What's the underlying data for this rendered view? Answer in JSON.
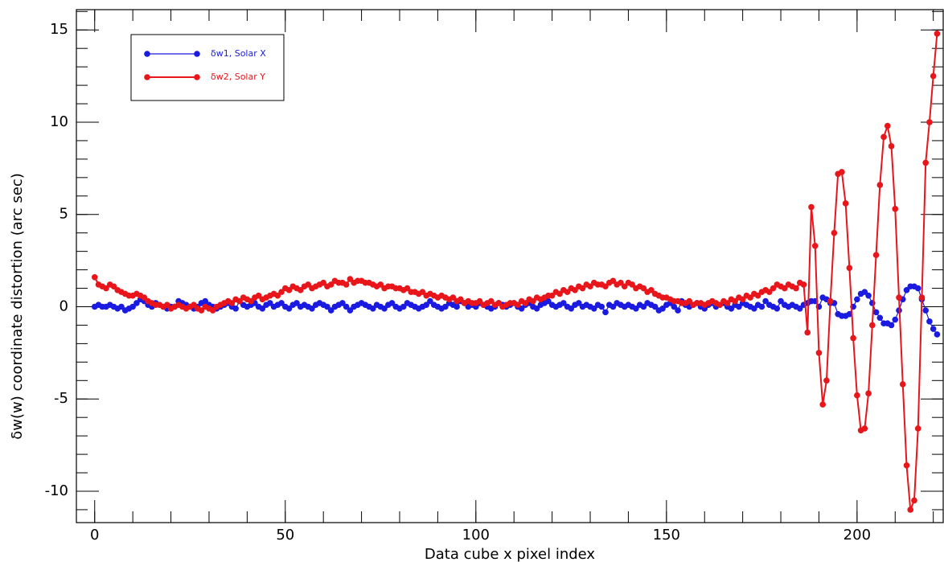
{
  "chart_data": {
    "type": "line",
    "x_label": "Data cube x pixel index",
    "y_label": "δw(w) coordinate distortion (arc sec)",
    "x": [
      0,
      1,
      2,
      3,
      4,
      5,
      6,
      7,
      8,
      9,
      10,
      11,
      12,
      13,
      14,
      15,
      16,
      17,
      18,
      19,
      20,
      21,
      22,
      23,
      24,
      25,
      26,
      27,
      28,
      29,
      30,
      31,
      32,
      33,
      34,
      35,
      36,
      37,
      38,
      39,
      40,
      41,
      42,
      43,
      44,
      45,
      46,
      47,
      48,
      49,
      50,
      51,
      52,
      53,
      54,
      55,
      56,
      57,
      58,
      59,
      60,
      61,
      62,
      63,
      64,
      65,
      66,
      67,
      68,
      69,
      70,
      71,
      72,
      73,
      74,
      75,
      76,
      77,
      78,
      79,
      80,
      81,
      82,
      83,
      84,
      85,
      86,
      87,
      88,
      89,
      90,
      91,
      92,
      93,
      94,
      95,
      96,
      97,
      98,
      99,
      100,
      101,
      102,
      103,
      104,
      105,
      106,
      107,
      108,
      109,
      110,
      111,
      112,
      113,
      114,
      115,
      116,
      117,
      118,
      119,
      120,
      121,
      122,
      123,
      124,
      125,
      126,
      127,
      128,
      129,
      130,
      131,
      132,
      133,
      134,
      135,
      136,
      137,
      138,
      139,
      140,
      141,
      142,
      143,
      144,
      145,
      146,
      147,
      148,
      149,
      150,
      151,
      152,
      153,
      154,
      155,
      156,
      157,
      158,
      159,
      160,
      161,
      162,
      163,
      164,
      165,
      166,
      167,
      168,
      169,
      170,
      171,
      172,
      173,
      174,
      175,
      176,
      177,
      178,
      179,
      180,
      181,
      182,
      183,
      184,
      185,
      186,
      187,
      188,
      189,
      190,
      191,
      192,
      193,
      194,
      195,
      196,
      197,
      198,
      199,
      200,
      201,
      202,
      203,
      204,
      205,
      206,
      207,
      208,
      209,
      210,
      211,
      212,
      213,
      214,
      215,
      216,
      217,
      218,
      219,
      220,
      221
    ],
    "series": [
      {
        "name": "δw1, Solar X",
        "color": "#1a1ae0",
        "values": [
          0,
          0.1,
          0,
          0,
          0.1,
          0,
          -0.1,
          0,
          -0.2,
          -0.1,
          0,
          0.2,
          0.4,
          0.3,
          0.1,
          0,
          0.2,
          0.1,
          0,
          -0.1,
          0,
          0,
          0.3,
          0.2,
          0.1,
          0,
          -0.1,
          0,
          0.2,
          0.3,
          0.1,
          0,
          -0.1,
          0,
          0.1,
          0.2,
          0,
          -0.1,
          0.3,
          0.1,
          0,
          0.1,
          0.2,
          0,
          -0.1,
          0.1,
          0.2,
          0,
          0.1,
          0.2,
          0,
          -0.1,
          0.1,
          0.2,
          0,
          0.1,
          0,
          -0.1,
          0.1,
          0.2,
          0.1,
          0,
          -0.2,
          0,
          0.1,
          0.2,
          0,
          -0.2,
          0,
          0.1,
          0.2,
          0.1,
          0,
          -0.1,
          0.1,
          0,
          -0.1,
          0.1,
          0.2,
          0,
          -0.1,
          0,
          0.2,
          0.1,
          0,
          -0.1,
          0,
          0.1,
          0.3,
          0.1,
          0,
          -0.1,
          0,
          0.2,
          0.1,
          0,
          0.3,
          0.2,
          0,
          0.1,
          0,
          0.2,
          0.1,
          0,
          -0.1,
          0,
          0.2,
          0.1,
          0,
          0.1,
          0.2,
          0,
          -0.1,
          0.1,
          0.2,
          0,
          -0.1,
          0.1,
          0.2,
          0.3,
          0.1,
          0,
          0.1,
          0.2,
          0,
          -0.1,
          0.1,
          0.2,
          0,
          0.1,
          0,
          -0.1,
          0.1,
          0,
          -0.3,
          0.1,
          0,
          0.2,
          0.1,
          0,
          0.1,
          0,
          -0.1,
          0.1,
          0,
          0.2,
          0.1,
          0,
          -0.2,
          -0.1,
          0.1,
          0.2,
          0,
          -0.2,
          0.3,
          0.1,
          0,
          0.1,
          0.2,
          0,
          -0.1,
          0.1,
          0.2,
          0,
          0.1,
          0.2,
          0,
          -0.1,
          0.1,
          0,
          0.2,
          0.1,
          0,
          -0.1,
          0.1,
          0,
          0.3,
          0.1,
          0,
          -0.1,
          0.3,
          0.1,
          0,
          0.1,
          0,
          -0.1,
          0.1,
          0.2,
          0.3,
          0.3,
          0,
          0.5,
          0.4,
          0.2,
          0.2,
          -0.4,
          -0.5,
          -0.5,
          -0.4,
          0,
          0.4,
          0.7,
          0.8,
          0.6,
          0.2,
          -0.3,
          -0.6,
          -0.9,
          -0.9,
          -1.0,
          -0.7,
          -0.2,
          0.4,
          0.9,
          1.1,
          1.1,
          1.0,
          0.4,
          -0.2,
          -0.8,
          -1.2,
          -1.5
        ]
      },
      {
        "name": "δw2, Solar Y",
        "color": "#e8151b",
        "values": [
          1.6,
          1.2,
          1.1,
          1.0,
          1.2,
          1.1,
          0.9,
          0.8,
          0.7,
          0.6,
          0.6,
          0.7,
          0.6,
          0.5,
          0.3,
          0.2,
          0.1,
          0.1,
          0.0,
          0.1,
          -0.1,
          0.0,
          0.1,
          0.0,
          -0.1,
          0.0,
          0.1,
          -0.1,
          -0.2,
          0.0,
          -0.1,
          -0.2,
          0.0,
          0.1,
          0.2,
          0.3,
          0.2,
          0.4,
          0.3,
          0.5,
          0.4,
          0.3,
          0.5,
          0.6,
          0.4,
          0.5,
          0.6,
          0.7,
          0.6,
          0.8,
          1.0,
          0.9,
          1.1,
          1.0,
          0.9,
          1.1,
          1.2,
          1.0,
          1.1,
          1.2,
          1.3,
          1.1,
          1.2,
          1.4,
          1.3,
          1.3,
          1.2,
          1.5,
          1.3,
          1.4,
          1.4,
          1.3,
          1.3,
          1.2,
          1.1,
          1.2,
          1.0,
          1.1,
          1.1,
          1.0,
          1.0,
          0.9,
          1.0,
          0.8,
          0.8,
          0.7,
          0.8,
          0.6,
          0.7,
          0.6,
          0.5,
          0.6,
          0.5,
          0.4,
          0.5,
          0.3,
          0.4,
          0.2,
          0.3,
          0.2,
          0.2,
          0.3,
          0.1,
          0.2,
          0.3,
          0.1,
          0.2,
          0.0,
          0.1,
          0.2,
          0.2,
          0.1,
          0.3,
          0.2,
          0.4,
          0.3,
          0.5,
          0.4,
          0.5,
          0.6,
          0.6,
          0.8,
          0.7,
          0.9,
          0.8,
          1.0,
          0.9,
          1.1,
          1.0,
          1.2,
          1.1,
          1.3,
          1.2,
          1.2,
          1.1,
          1.3,
          1.4,
          1.2,
          1.3,
          1.1,
          1.3,
          1.2,
          1.0,
          1.1,
          1.0,
          0.8,
          0.9,
          0.7,
          0.6,
          0.5,
          0.5,
          0.4,
          0.3,
          0.3,
          0.2,
          0.2,
          0.3,
          0.1,
          0.2,
          0.2,
          0.1,
          0.2,
          0.3,
          0.2,
          0.1,
          0.3,
          0.2,
          0.4,
          0.3,
          0.5,
          0.4,
          0.6,
          0.5,
          0.7,
          0.6,
          0.8,
          0.9,
          0.8,
          1.0,
          1.2,
          1.1,
          1.0,
          1.2,
          1.1,
          1.0,
          1.3,
          1.2,
          -1.4,
          5.4,
          3.3,
          -2.5,
          -5.3,
          -4.0,
          0.3,
          4.0,
          7.2,
          7.3,
          5.6,
          2.1,
          -1.7,
          -4.8,
          -6.7,
          -6.6,
          -4.7,
          -1.0,
          2.8,
          6.6,
          9.2,
          9.8,
          8.7,
          5.3,
          0.5,
          -4.2,
          -8.6,
          -11.0,
          -10.5,
          -6.6,
          0.5,
          7.8,
          10.0,
          12.5,
          14.8
        ]
      }
    ],
    "xlim": [
      -4.8,
      222.6
    ],
    "ylim": [
      -11.7,
      16.1
    ],
    "xticks": [
      0,
      50,
      100,
      150,
      200
    ],
    "yticks": [
      -10,
      -5,
      0,
      5,
      10,
      15
    ],
    "xminorticks": [
      0,
      10,
      20,
      30,
      40,
      50,
      60,
      70,
      80,
      90,
      100,
      110,
      120,
      130,
      140,
      150,
      160,
      170,
      180,
      190,
      200,
      210,
      220
    ],
    "yminorticks": [
      -11,
      -10,
      -9,
      -8,
      -7,
      -6,
      -5,
      -4,
      -3,
      -2,
      -1,
      0,
      1,
      2,
      3,
      4,
      5,
      6,
      7,
      8,
      9,
      10,
      11,
      12,
      13,
      14,
      15,
      16
    ],
    "legend": "upper left"
  }
}
